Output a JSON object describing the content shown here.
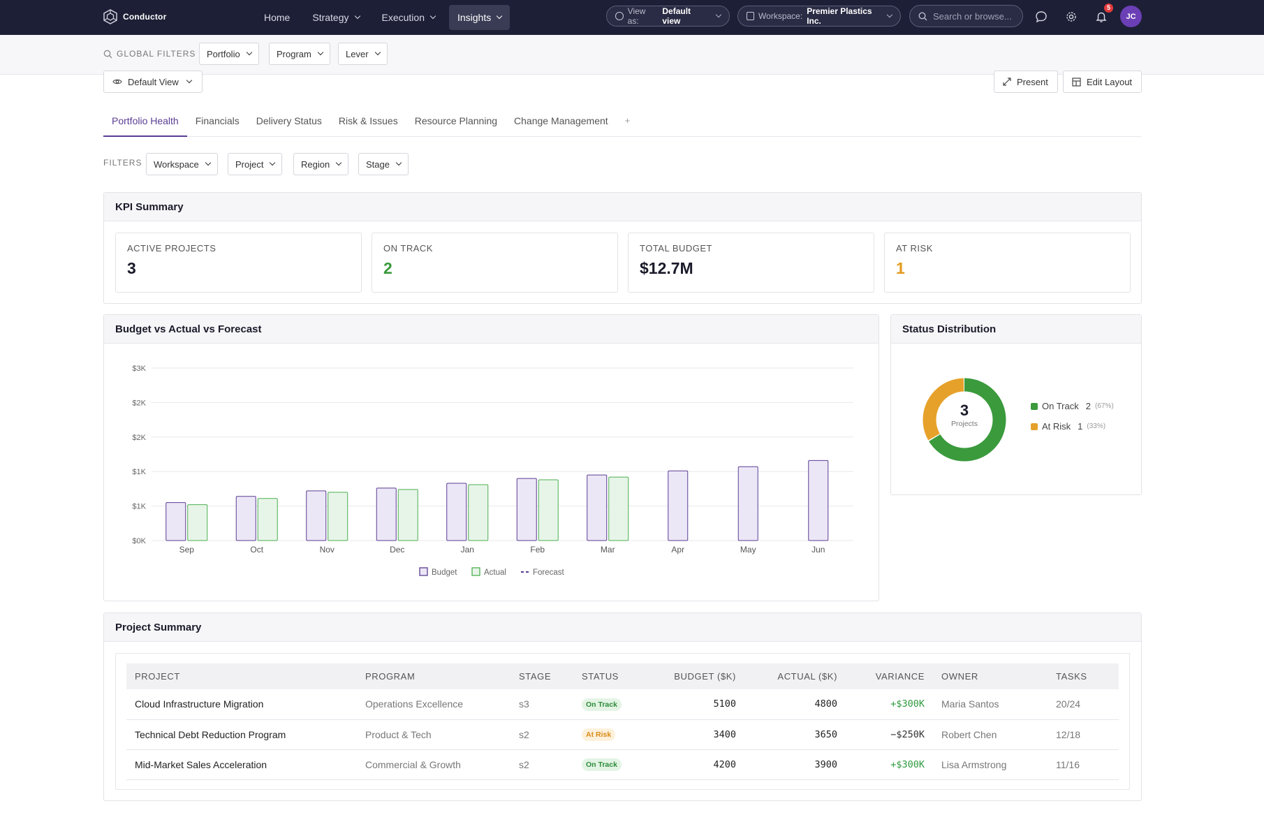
{
  "app": {
    "name": "Conductor"
  },
  "nav": [
    {
      "label": "Home",
      "dropdown": false,
      "active": false
    },
    {
      "label": "Strategy",
      "dropdown": true,
      "active": false
    },
    {
      "label": "Execution",
      "dropdown": true,
      "active": false
    },
    {
      "label": "Insights",
      "dropdown": true,
      "active": true
    }
  ],
  "view_as": {
    "label": "View as:",
    "value": "Default view"
  },
  "workspace": {
    "label": "Workspace:",
    "value": "Premier Plastics Inc."
  },
  "search": {
    "placeholder": "Search or browse..."
  },
  "notifications": {
    "count": "5"
  },
  "user": {
    "initials": "JC"
  },
  "global_filters": {
    "label": "GLOBAL FILTERS",
    "items": [
      "Portfolio",
      "Program",
      "Lever"
    ]
  },
  "view_selector": {
    "label": "Default View"
  },
  "actions": {
    "present": "Present",
    "edit_layout": "Edit Layout"
  },
  "tabs": [
    {
      "label": "Portfolio Health",
      "active": true
    },
    {
      "label": "Financials",
      "active": false
    },
    {
      "label": "Delivery Status",
      "active": false
    },
    {
      "label": "Risk & Issues",
      "active": false
    },
    {
      "label": "Resource Planning",
      "active": false
    },
    {
      "label": "Change Management",
      "active": false
    }
  ],
  "tab_add": "+",
  "filters": {
    "label": "FILTERS",
    "items": [
      "Workspace",
      "Project",
      "Region",
      "Stage"
    ]
  },
  "kpi_summary": {
    "title": "KPI Summary",
    "cards": [
      {
        "label": "ACTIVE PROJECTS",
        "value": "3",
        "color": "#1a1a2a"
      },
      {
        "label": "ON TRACK",
        "value": "2",
        "color": "#3a9a3c"
      },
      {
        "label": "TOTAL BUDGET",
        "value": "$12.7M",
        "color": "#1a1a2a"
      },
      {
        "label": "AT RISK",
        "value": "1",
        "color": "#e39a1f"
      }
    ]
  },
  "budget_chart": {
    "title": "Budget vs Actual vs Forecast",
    "legend": [
      "Budget",
      "Actual",
      "Forecast"
    ]
  },
  "chart_data": {
    "type": "bar",
    "categories": [
      "Sep",
      "Oct",
      "Nov",
      "Dec",
      "Jan",
      "Feb",
      "Mar",
      "Apr",
      "May",
      "Jun"
    ],
    "series": [
      {
        "name": "Budget",
        "values": [
          550,
          640,
          720,
          760,
          830,
          900,
          950,
          1010,
          1070,
          1160
        ],
        "color": "#5a3d93",
        "fill": "#ece7f6"
      },
      {
        "name": "Actual",
        "values": [
          520,
          610,
          700,
          740,
          810,
          880,
          920,
          null,
          null,
          null
        ],
        "color": "#4caf50",
        "fill": "#e7f5e8"
      },
      {
        "name": "Forecast",
        "values": [
          null,
          null,
          null,
          null,
          null,
          null,
          null,
          null,
          null,
          null
        ],
        "color": "#5a3d93"
      }
    ],
    "y_ticks": [
      "$0K",
      "$1K",
      "$1K",
      "$2K",
      "$2K",
      "$3K"
    ],
    "ylim": [
      0,
      2500
    ],
    "grid": true,
    "legend_position": "bottom"
  },
  "status_distribution": {
    "title": "Status Distribution",
    "total": "3",
    "total_label": "Projects",
    "slices": [
      {
        "label": "On Track",
        "count": "2",
        "pct": "(67%)",
        "value": 2,
        "color": "#3a9a3c"
      },
      {
        "label": "At Risk",
        "count": "1",
        "pct": "(33%)",
        "value": 1,
        "color": "#e6a12a"
      }
    ]
  },
  "project_summary": {
    "title": "Project Summary",
    "columns": [
      "PROJECT",
      "PROGRAM",
      "STAGE",
      "STATUS",
      "BUDGET ($K)",
      "ACTUAL ($K)",
      "VARIANCE",
      "OWNER",
      "TASKS"
    ],
    "rows": [
      {
        "project": "Cloud Infrastructure Migration",
        "program": "Operations Excellence",
        "stage": "s3",
        "status": "On Track",
        "status_color": "#2e8b3a",
        "status_bg": "#e3f4e4",
        "budget": "5100",
        "actual": "4800",
        "variance": "+$300K",
        "variance_positive": true,
        "owner": "Maria Santos",
        "tasks": "20/24"
      },
      {
        "project": "Technical Debt Reduction Program",
        "program": "Product & Tech",
        "stage": "s2",
        "status": "At Risk",
        "status_color": "#d98a12",
        "status_bg": "#fdf1dc",
        "budget": "3400",
        "actual": "3650",
        "variance": "−$250K",
        "variance_positive": false,
        "owner": "Robert Chen",
        "tasks": "12/18"
      },
      {
        "project": "Mid-Market Sales Acceleration",
        "program": "Commercial & Growth",
        "stage": "s2",
        "status": "On Track",
        "status_color": "#2e8b3a",
        "status_bg": "#e3f4e4",
        "budget": "4200",
        "actual": "3900",
        "variance": "+$300K",
        "variance_positive": true,
        "owner": "Lisa Armstrong",
        "tasks": "11/16"
      }
    ]
  }
}
